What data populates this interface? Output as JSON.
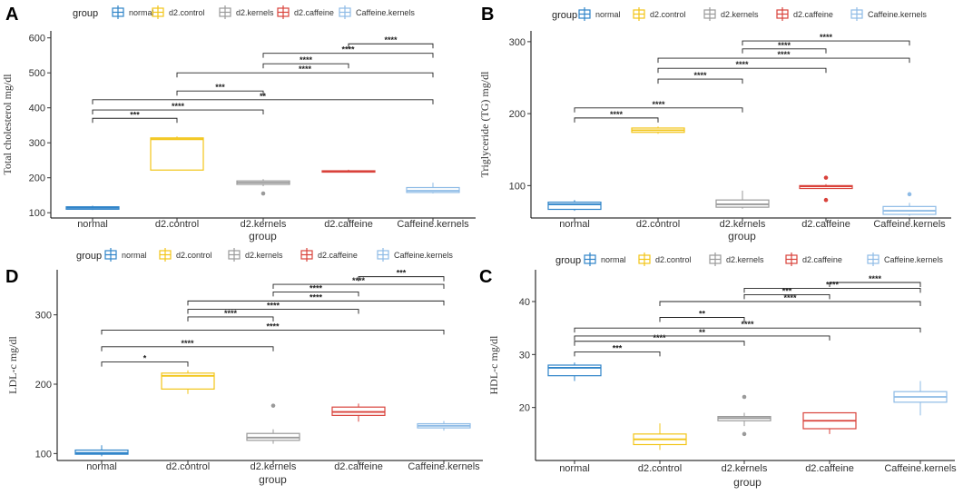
{
  "colors": {
    "normal": "#2f84c9",
    "d2.control": "#f2c518",
    "d2.kernels": "#9a9a9a",
    "d2.caffeine": "#d9423b",
    "Caffeine.kernels": "#8ebbe6"
  },
  "legend_title": "group",
  "legend_entries": [
    "normal",
    "d2.control",
    "d2.kernels",
    "d2.caffeine",
    "Caffeine.kernels"
  ],
  "chart_data": [
    {
      "type": "box",
      "panel_label": "A",
      "ylabel": "Total cholesterol mg/dl",
      "xlabel": "group",
      "categories": [
        "normal",
        "d2.control",
        "d2.kernels",
        "d2.caffeine",
        "Caffeine.kernels"
      ],
      "ylim": [
        85,
        620
      ],
      "yticks": [
        100,
        200,
        300,
        400,
        500,
        600
      ],
      "ytick_labels": [
        "100",
        "200",
        "300",
        "400",
        "500",
        "600"
      ],
      "boxes": [
        {
          "min": 108,
          "q1": 110,
          "median": 114,
          "q3": 117,
          "max": 120,
          "outliers": []
        },
        {
          "min": 222,
          "q1": 222,
          "median": 310,
          "q3": 314,
          "max": 318,
          "outliers": []
        },
        {
          "min": 176,
          "q1": 181,
          "median": 186,
          "q3": 191,
          "max": 196,
          "outliers": [
            155
          ]
        },
        {
          "min": 215,
          "q1": 217,
          "median": 218,
          "q3": 220,
          "max": 223,
          "outliers": []
        },
        {
          "min": 155,
          "q1": 158,
          "median": 163,
          "q3": 172,
          "max": 186,
          "outliers": []
        }
      ],
      "brackets": [
        {
          "from": 0,
          "to": 1,
          "y": 370,
          "label": "***"
        },
        {
          "from": 0,
          "to": 2,
          "y": 394,
          "label": "****"
        },
        {
          "from": 0,
          "to": 4,
          "y": 423,
          "label": "**"
        },
        {
          "from": 1,
          "to": 2,
          "y": 448,
          "label": "***"
        },
        {
          "from": 1,
          "to": 4,
          "y": 500,
          "label": "****"
        },
        {
          "from": 2,
          "to": 3,
          "y": 526,
          "label": "****"
        },
        {
          "from": 2,
          "to": 4,
          "y": 556,
          "label": "****"
        },
        {
          "from": 3,
          "to": 4,
          "y": 583,
          "label": "****"
        }
      ]
    },
    {
      "type": "box",
      "panel_label": "B",
      "ylabel": "Triglyceride (TG) mg/dl",
      "xlabel": "group",
      "categories": [
        "normal",
        "d2.control",
        "d2.kernels",
        "d2.caffeine",
        "Caffeine.kernels"
      ],
      "ylim": [
        55,
        315
      ],
      "yticks": [
        100,
        200,
        300
      ],
      "ytick_labels": [
        "100",
        "200",
        "300"
      ],
      "boxes": [
        {
          "min": 65,
          "q1": 67,
          "median": 74,
          "q3": 77,
          "max": 80,
          "outliers": []
        },
        {
          "min": 172,
          "q1": 174,
          "median": 177,
          "q3": 180,
          "max": 182,
          "outliers": []
        },
        {
          "min": 68,
          "q1": 70,
          "median": 74,
          "q3": 80,
          "max": 93,
          "outliers": []
        },
        {
          "min": 96,
          "q1": 96,
          "median": 99,
          "q3": 100,
          "max": 102,
          "outliers": [
            111,
            80
          ]
        },
        {
          "min": 58,
          "q1": 60,
          "median": 65,
          "q3": 71,
          "max": 76,
          "outliers": [
            88
          ]
        }
      ],
      "brackets": [
        {
          "from": 0,
          "to": 1,
          "y": 194,
          "label": "****"
        },
        {
          "from": 0,
          "to": 2,
          "y": 208,
          "label": "****"
        },
        {
          "from": 1,
          "to": 2,
          "y": 248,
          "label": "****"
        },
        {
          "from": 1,
          "to": 3,
          "y": 263,
          "label": "****"
        },
        {
          "from": 1,
          "to": 4,
          "y": 277,
          "label": "****"
        },
        {
          "from": 2,
          "to": 3,
          "y": 290,
          "label": "****"
        },
        {
          "from": 2,
          "to": 4,
          "y": 301,
          "label": "****"
        }
      ]
    },
    {
      "type": "box",
      "panel_label": "D",
      "ylabel": "LDL-c mg/dl",
      "xlabel": "group",
      "categories": [
        "normal",
        "d2.control",
        "d2.kernels",
        "d2.caffeine",
        "Caffeine.kernels"
      ],
      "ylim": [
        90,
        365
      ],
      "yticks": [
        100,
        200,
        300
      ],
      "ytick_labels": [
        "100",
        "200",
        "300"
      ],
      "boxes": [
        {
          "min": 96,
          "q1": 99,
          "median": 101,
          "q3": 105,
          "max": 112,
          "outliers": []
        },
        {
          "min": 186,
          "q1": 193,
          "median": 212,
          "q3": 216,
          "max": 220,
          "outliers": []
        },
        {
          "min": 114,
          "q1": 119,
          "median": 123,
          "q3": 129,
          "max": 135,
          "outliers": [
            169
          ]
        },
        {
          "min": 146,
          "q1": 155,
          "median": 160,
          "q3": 167,
          "max": 172,
          "outliers": []
        },
        {
          "min": 133,
          "q1": 137,
          "median": 140,
          "q3": 143,
          "max": 147,
          "outliers": []
        }
      ],
      "brackets": [
        {
          "from": 0,
          "to": 1,
          "y": 232,
          "label": "*"
        },
        {
          "from": 0,
          "to": 2,
          "y": 254,
          "label": "****"
        },
        {
          "from": 0,
          "to": 4,
          "y": 278,
          "label": "****"
        },
        {
          "from": 1,
          "to": 2,
          "y": 297,
          "label": "****"
        },
        {
          "from": 1,
          "to": 3,
          "y": 308,
          "label": "****"
        },
        {
          "from": 1,
          "to": 4,
          "y": 320,
          "label": "****"
        },
        {
          "from": 2,
          "to": 3,
          "y": 333,
          "label": "****"
        },
        {
          "from": 2,
          "to": 4,
          "y": 344,
          "label": "****"
        },
        {
          "from": 3,
          "to": 4,
          "y": 355,
          "label": "***"
        }
      ]
    },
    {
      "type": "box",
      "panel_label": "C",
      "ylabel": "HDL-c mg/dl",
      "xlabel": "group",
      "categories": [
        "normal",
        "d2.control",
        "d2.kernels",
        "d2.caffeine",
        "Caffeine.kernels"
      ],
      "ylim": [
        10,
        46
      ],
      "yticks": [
        20,
        30,
        40
      ],
      "ytick_labels": [
        "20",
        "30",
        "40"
      ],
      "boxes": [
        {
          "min": 25,
          "q1": 26,
          "median": 27.5,
          "q3": 28,
          "max": 28.5,
          "outliers": []
        },
        {
          "min": 12,
          "q1": 13,
          "median": 14,
          "q3": 15,
          "max": 17,
          "outliers": []
        },
        {
          "min": 16.5,
          "q1": 17.5,
          "median": 18,
          "q3": 18.3,
          "max": 19,
          "outliers": [
            22,
            15
          ]
        },
        {
          "min": 15,
          "q1": 16,
          "median": 17.5,
          "q3": 19,
          "max": 19,
          "outliers": []
        },
        {
          "min": 18.5,
          "q1": 21,
          "median": 22,
          "q3": 23,
          "max": 25,
          "outliers": []
        }
      ],
      "brackets": [
        {
          "from": 0,
          "to": 1,
          "y": 30.5,
          "label": "***"
        },
        {
          "from": 0,
          "to": 2,
          "y": 32.5,
          "label": "****"
        },
        {
          "from": 0,
          "to": 3,
          "y": 33.5,
          "label": "**"
        },
        {
          "from": 0,
          "to": 4,
          "y": 35,
          "label": "****"
        },
        {
          "from": 1,
          "to": 2,
          "y": 37,
          "label": "**"
        },
        {
          "from": 1,
          "to": 4,
          "y": 40,
          "label": "****"
        },
        {
          "from": 2,
          "to": 3,
          "y": 41.3,
          "label": "***"
        },
        {
          "from": 2,
          "to": 4,
          "y": 42.5,
          "label": "****"
        },
        {
          "from": 3,
          "to": 4,
          "y": 43.6,
          "label": "****"
        }
      ]
    }
  ]
}
